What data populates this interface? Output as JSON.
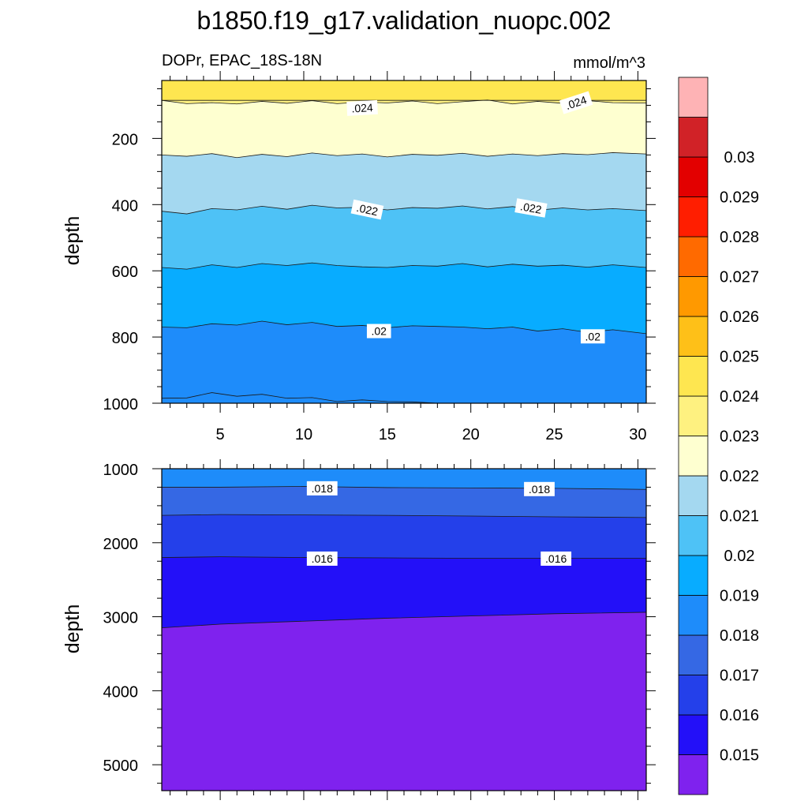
{
  "title": "b1850.f19_g17.validation_nuopc.002",
  "chart_data": [
    {
      "type": "contour",
      "panel": "upper",
      "left_label": "DOPr, EPAC_18S-18N",
      "right_label": "mmol/m^3",
      "ylabel": "depth",
      "xlabel": "",
      "xlim": [
        1.5,
        30.5
      ],
      "ylim": [
        1000,
        25
      ],
      "y_reversed": true,
      "x_ticks": [
        5,
        10,
        15,
        20,
        25,
        30
      ],
      "y_ticks": [
        200,
        400,
        600,
        800,
        1000
      ],
      "x": [
        1.5,
        3,
        4.5,
        6,
        7.5,
        9,
        10.5,
        12,
        13.5,
        15,
        16.5,
        18,
        19.5,
        21,
        22.5,
        24,
        25.5,
        27,
        28.5,
        30.5
      ],
      "contours": [
        {
          "level": 0.024,
          "depth": [
            85,
            85,
            85,
            85,
            85,
            85,
            85,
            85,
            85,
            85,
            85,
            85,
            85,
            85,
            85,
            85,
            85,
            85,
            85,
            85
          ]
        },
        {
          "level": 0.023,
          "depth": [
            85,
            95,
            92,
            96,
            88,
            94,
            86,
            95,
            90,
            93,
            87,
            95,
            89,
            84,
            96,
            88,
            94,
            86,
            92,
            93
          ]
        },
        {
          "level": 0.022,
          "depth": [
            250,
            254,
            246,
            258,
            248,
            255,
            244,
            252,
            247,
            256,
            248,
            251,
            245,
            254,
            247,
            252,
            246,
            249,
            243,
            247
          ]
        },
        {
          "level": 0.021,
          "depth": [
            420,
            428,
            412,
            416,
            405,
            414,
            402,
            410,
            408,
            416,
            409,
            411,
            404,
            413,
            406,
            417,
            410,
            416,
            412,
            418
          ]
        },
        {
          "level": 0.02,
          "depth": [
            590,
            595,
            582,
            590,
            578,
            584,
            576,
            584,
            588,
            590,
            584,
            586,
            578,
            588,
            580,
            586,
            583,
            589,
            582,
            590
          ]
        },
        {
          "level": 0.019,
          "depth": [
            770,
            772,
            760,
            764,
            752,
            763,
            756,
            768,
            765,
            772,
            766,
            768,
            770,
            775,
            770,
            782,
            775,
            786,
            778,
            790
          ]
        },
        {
          "level": 0.018,
          "depth": [
            985,
            984,
            968,
            979,
            973,
            985,
            983,
            995,
            990,
            995,
            996,
            1000,
            1000,
            1000,
            1000,
            1000,
            1000,
            1000,
            1000,
            1000
          ]
        }
      ],
      "contour_labels": [
        {
          "text": ".024",
          "x": 13.5,
          "depth": 108,
          "angle": -3
        },
        {
          "text": ".024",
          "x": 26.3,
          "depth": 92,
          "angle": -18
        },
        {
          "text": ".022",
          "x": 13.8,
          "depth": 415,
          "angle": 12
        },
        {
          "text": ".022",
          "x": 23.6,
          "depth": 410,
          "angle": 10
        },
        {
          "text": ".02",
          "x": 14.5,
          "depth": 782,
          "angle": 0
        },
        {
          "text": ".02",
          "x": 27.3,
          "depth": 798,
          "angle": 0
        }
      ]
    },
    {
      "type": "contour",
      "panel": "lower",
      "ylabel": "depth",
      "xlabel": "",
      "xlim": [
        1.5,
        30.5
      ],
      "ylim": [
        5350,
        1000
      ],
      "y_reversed": true,
      "y_ticks": [
        1000,
        2000,
        3000,
        4000,
        5000
      ],
      "x": [
        1.5,
        5,
        10,
        15,
        20,
        25,
        30.5
      ],
      "contours": [
        {
          "level": 0.018,
          "depth": [
            1000,
            1000,
            1000,
            1000,
            1000,
            1000,
            1000
          ]
        },
        {
          "level": 0.017,
          "depth": [
            1250,
            1250,
            1240,
            1255,
            1260,
            1265,
            1280
          ]
        },
        {
          "level": 0.016,
          "depth": [
            1630,
            1620,
            1625,
            1630,
            1640,
            1650,
            1660
          ]
        },
        {
          "level": 0.015,
          "depth": [
            2200,
            2190,
            2200,
            2205,
            2210,
            2210,
            2210
          ]
        },
        {
          "level": 0.014,
          "depth": [
            3150,
            3100,
            3060,
            3020,
            2990,
            2960,
            2940
          ]
        }
      ],
      "contour_labels": [
        {
          "text": ".018",
          "x": 11.1,
          "depth": 1265,
          "angle": 0
        },
        {
          "text": ".018",
          "x": 24.1,
          "depth": 1275,
          "angle": 0
        },
        {
          "text": ".016",
          "x": 11.1,
          "depth": 2215,
          "angle": 0
        },
        {
          "text": ".016",
          "x": 25.1,
          "depth": 2215,
          "angle": 0
        }
      ]
    }
  ],
  "colorbar": {
    "labels": [
      "0.015",
      "0.016",
      "0.017",
      "0.018",
      "0.019",
      "0.02",
      "0.021",
      "0.022",
      "0.023",
      "0.024",
      "0.025",
      "0.026",
      "0.027",
      "0.028",
      "0.029",
      "0.03"
    ],
    "colors": [
      "#7f22ee",
      "#2310f8",
      "#2440ea",
      "#3568e4",
      "#1e8cfa",
      "#08acff",
      "#4ec2f6",
      "#a4d8f0",
      "#feffd0",
      "#fef180",
      "#fee650",
      "#fec018",
      "#ff9900",
      "#ff6a00",
      "#ff1e00",
      "#e30000",
      "#d12227",
      "#feb3b5"
    ]
  },
  "colors": {
    "lower_bands": [
      "#1e8cfa",
      "#3568e4",
      "#2440ea",
      "#2310f8",
      "#7f22ee"
    ]
  }
}
